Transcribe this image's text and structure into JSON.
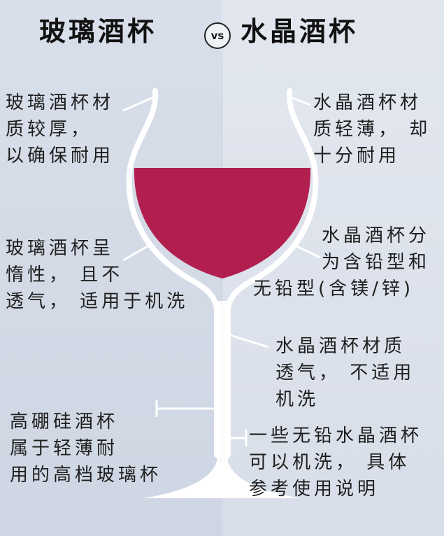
{
  "header": {
    "left_title": "玻璃酒杯",
    "vs_label": "vs",
    "right_title": "水晶酒杯"
  },
  "notes": {
    "left_top": [
      "玻璃酒杯材",
      "质较厚，",
      "以确保耐用"
    ],
    "right_top": [
      "水晶酒杯材",
      "质轻薄，  却",
      "十分耐用"
    ],
    "left_mid": [
      "玻璃酒杯呈",
      "惰性，  且不",
      "透气，  适用于机洗"
    ],
    "right_mid": [
      "水晶酒杯分",
      "为含铅型和",
      "无铅型(含镁/锌)"
    ],
    "right_lower": [
      "水晶酒杯材质",
      "透气，  不适用",
      "机洗"
    ],
    "left_bottom": [
      "高硼硅酒杯",
      "属于轻薄耐",
      "用的高档玻璃杯"
    ],
    "right_bottom": [
      "一些无铅水晶酒杯",
      "可以机洗，  具体",
      "参考使用说明"
    ]
  },
  "colors": {
    "wine": "#b21f4f",
    "glass_outline": "#ffffff",
    "background": "#dbe1ec"
  }
}
